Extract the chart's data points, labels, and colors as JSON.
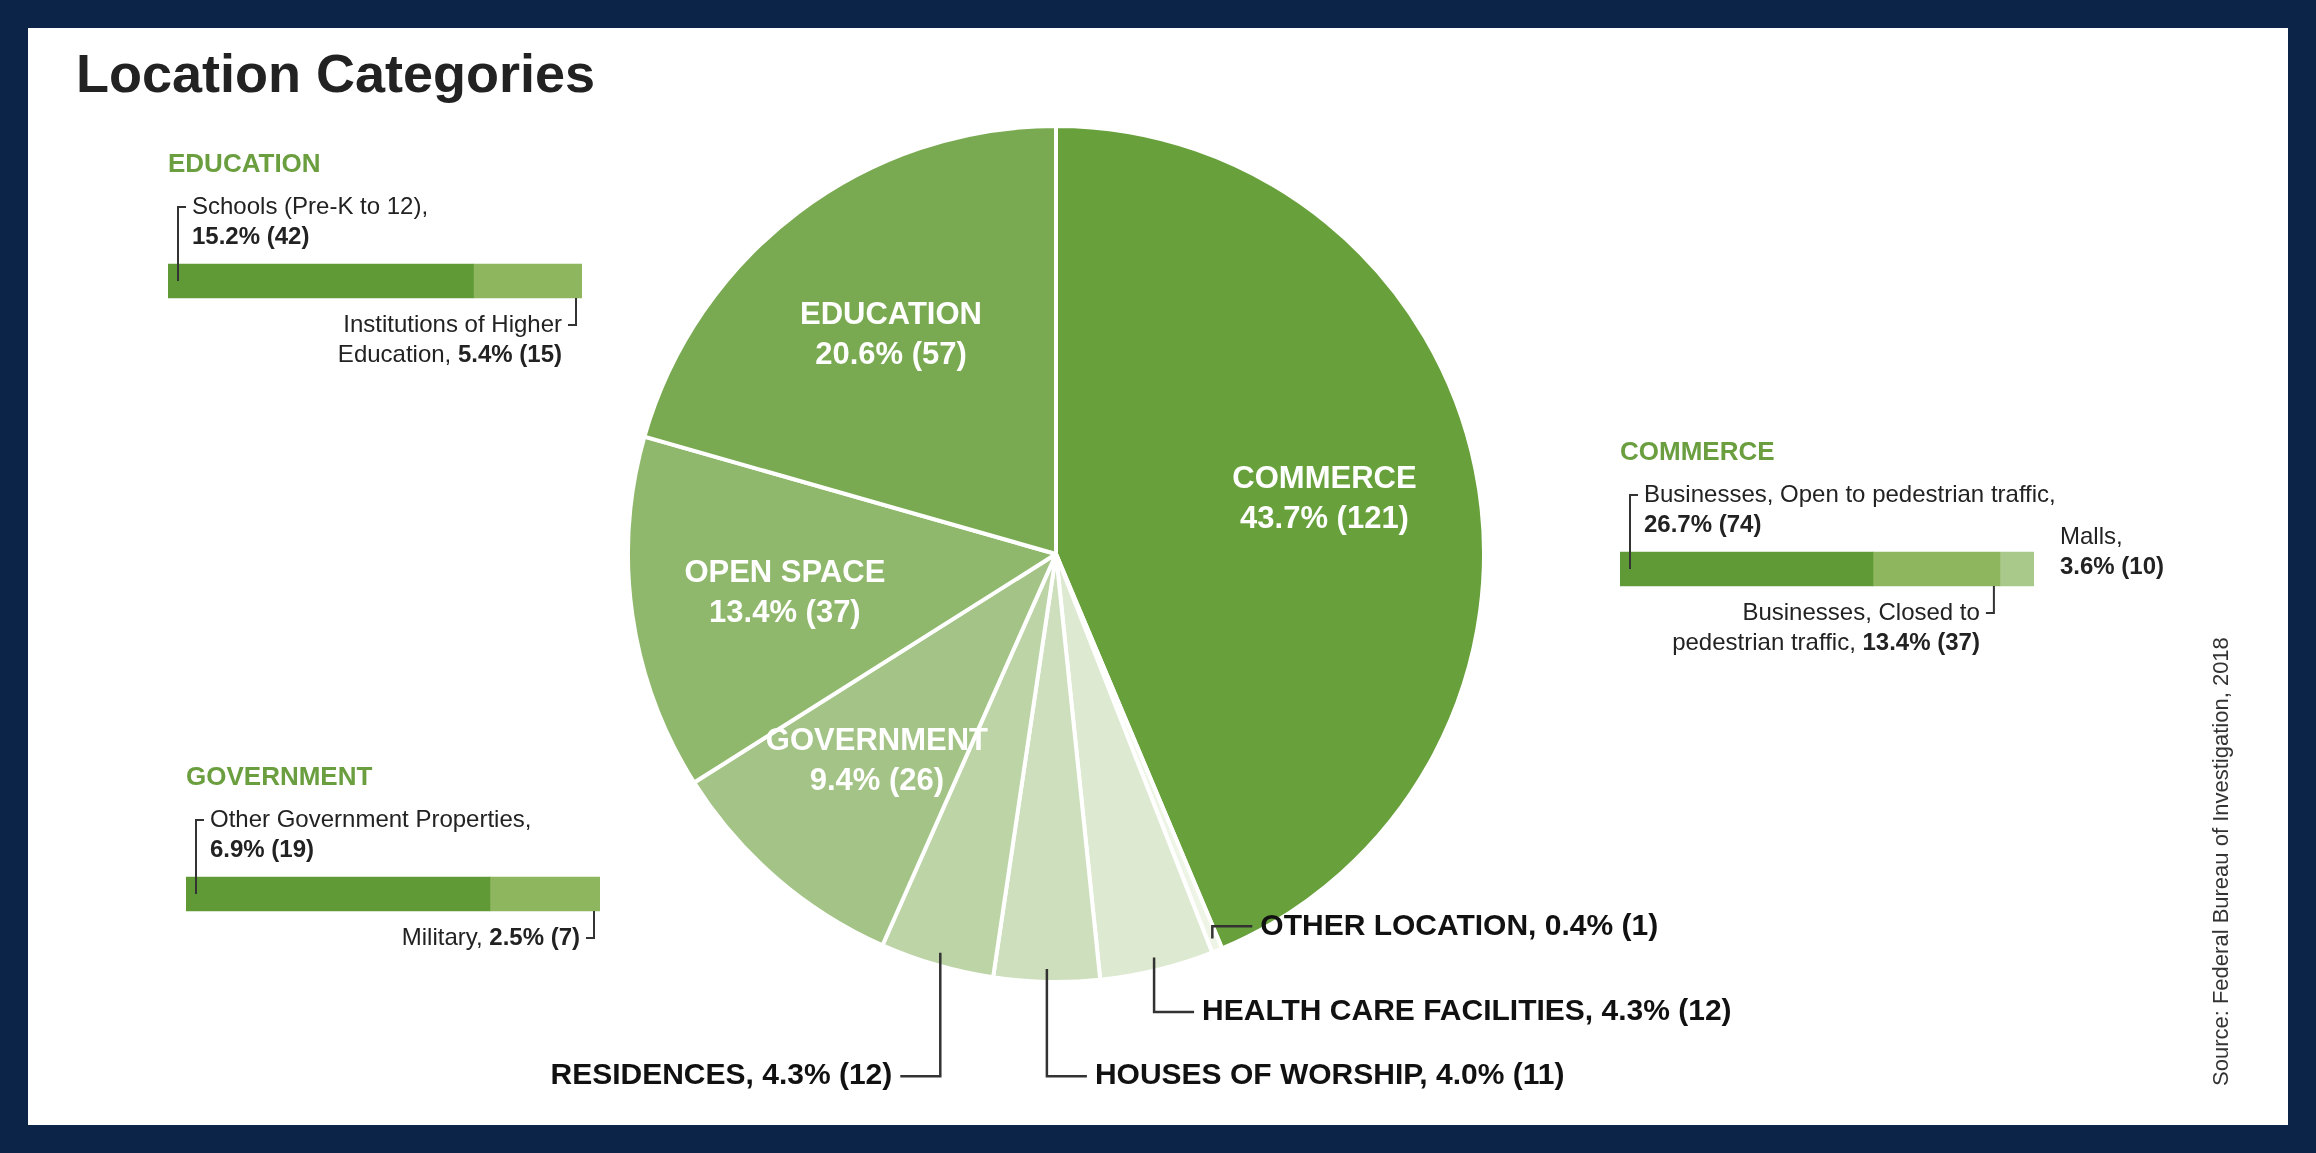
{
  "chart_data": [
    {
      "type": "pie",
      "title": "Location Categories",
      "categories": [
        "COMMERCE",
        "OTHER LOCATION",
        "HEALTH CARE FACILITIES",
        "HOUSES OF WORSHIP",
        "RESIDENCES",
        "GOVERNMENT",
        "OPEN SPACE",
        "EDUCATION"
      ],
      "values": [
        43.7,
        0.4,
        4.3,
        4.0,
        4.3,
        9.4,
        13.4,
        20.6
      ],
      "value_labels": [
        "43.7% (121)",
        "0.4% (1)",
        "4.3% (12)",
        "4.0% (11)",
        "4.3% (12)",
        "9.4% (26)",
        "13.4% (37)",
        "20.6% (57)"
      ],
      "colors": [
        "#68a03c",
        "#eef4e6",
        "#dde9d0",
        "#cddfbc",
        "#bcd4a6",
        "#a3c486",
        "#8fb86c",
        "#79aa52"
      ],
      "annotations": [
        "Source: Federal Bureau of Investigation, 2018"
      ]
    },
    {
      "type": "bar",
      "title": "EDUCATION",
      "orientation": "horizontal",
      "stacked": true,
      "tick_labels": false,
      "categories": [
        null
      ],
      "series": [
        {
          "name": "Schools (Pre-K to 12),",
          "color": "#5f9a36",
          "values": [
            15.2
          ],
          "value_labels": [
            "15.2% (42)"
          ]
        },
        {
          "name": "Institutions of Higher Education,",
          "color": "#8db65f",
          "values": [
            5.4
          ],
          "value_labels": [
            "5.4% (15)"
          ]
        }
      ]
    },
    {
      "type": "bar",
      "title": "COMMERCE",
      "orientation": "horizontal",
      "stacked": true,
      "tick_labels": false,
      "categories": [
        null
      ],
      "series": [
        {
          "name": "Businesses, Open to pedestrian traffic,",
          "color": "#5f9a36",
          "values": [
            26.7
          ],
          "value_labels": [
            "26.7% (74)"
          ]
        },
        {
          "name": "Businesses, Closed to pedestrian traffic,",
          "color": "#8db65f",
          "values": [
            13.4
          ],
          "value_labels": [
            "13.4% (37)"
          ]
        },
        {
          "name": "Malls,",
          "color": "#a9c98a",
          "values": [
            3.6
          ],
          "value_labels": [
            "3.6% (10)"
          ]
        }
      ]
    },
    {
      "type": "bar",
      "title": "GOVERNMENT",
      "orientation": "horizontal",
      "stacked": true,
      "tick_labels": false,
      "categories": [
        null
      ],
      "series": [
        {
          "name": "Other Government Properties,",
          "color": "#5f9a36",
          "values": [
            6.9
          ],
          "value_labels": [
            "6.9% (19)"
          ]
        },
        {
          "name": "Military,",
          "color": "#8db65f",
          "values": [
            2.5
          ],
          "value_labels": [
            "2.5% (7)"
          ]
        }
      ]
    }
  ]
}
